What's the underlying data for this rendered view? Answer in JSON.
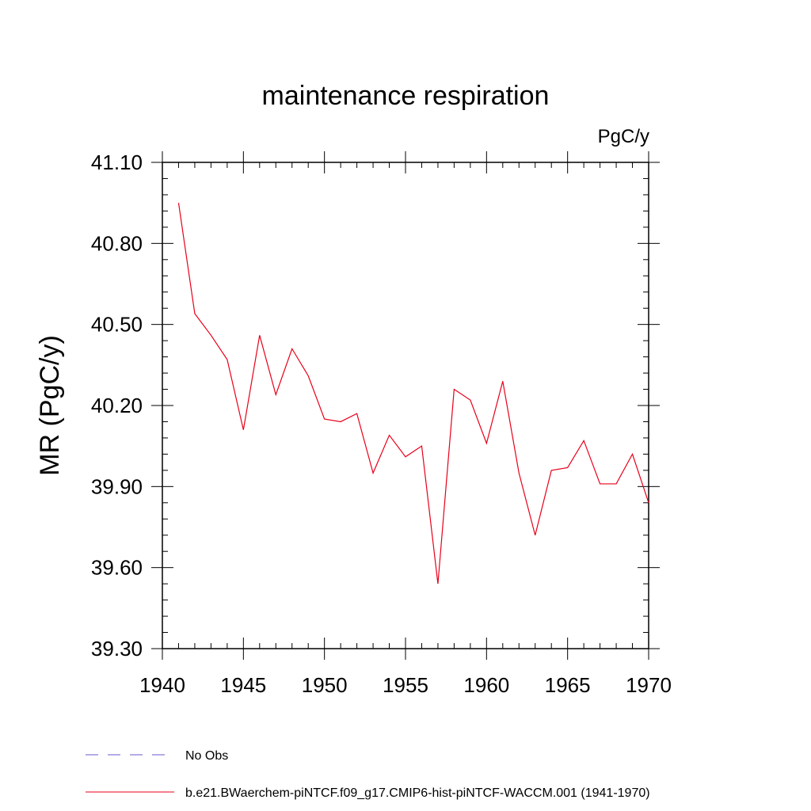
{
  "chart_data": {
    "type": "line",
    "title": "maintenance respiration",
    "units": "PgC/y",
    "ylabel": "MR  (PgC/y)",
    "xlabel": "",
    "xlim": [
      1940,
      1970
    ],
    "ylim": [
      39.3,
      41.1
    ],
    "xticks": [
      "1940",
      "1945",
      "1950",
      "1955",
      "1960",
      "1965",
      "1970"
    ],
    "yticks": [
      "41.10",
      "40.80",
      "40.50",
      "40.20",
      "39.90",
      "39.60",
      "39.30"
    ],
    "grid": false,
    "legend_position": "bottom-left",
    "series": [
      {
        "name": "b.e21.BWaerchem-piNTCF.f09_g17.CMIP6-hist-piNTCF-WACCM.001 (1941-1970)",
        "color": "#e8001a",
        "style": "solid",
        "x": [
          1941,
          1942,
          1943,
          1944,
          1945,
          1946,
          1947,
          1948,
          1949,
          1950,
          1951,
          1952,
          1953,
          1954,
          1955,
          1956,
          1957,
          1958,
          1959,
          1960,
          1961,
          1962,
          1963,
          1964,
          1965,
          1966,
          1967,
          1968,
          1969,
          1970
        ],
        "y": [
          40.95,
          40.54,
          40.46,
          40.37,
          40.11,
          40.46,
          40.24,
          40.41,
          40.31,
          40.15,
          40.14,
          40.17,
          39.95,
          40.09,
          40.01,
          40.05,
          39.54,
          40.26,
          40.22,
          40.06,
          40.29,
          39.95,
          39.72,
          39.96,
          39.97,
          40.07,
          39.91,
          39.91,
          40.02,
          39.84
        ]
      },
      {
        "name": "No Obs",
        "color": "#6a5acd",
        "style": "dashed",
        "x": [],
        "y": []
      }
    ]
  }
}
